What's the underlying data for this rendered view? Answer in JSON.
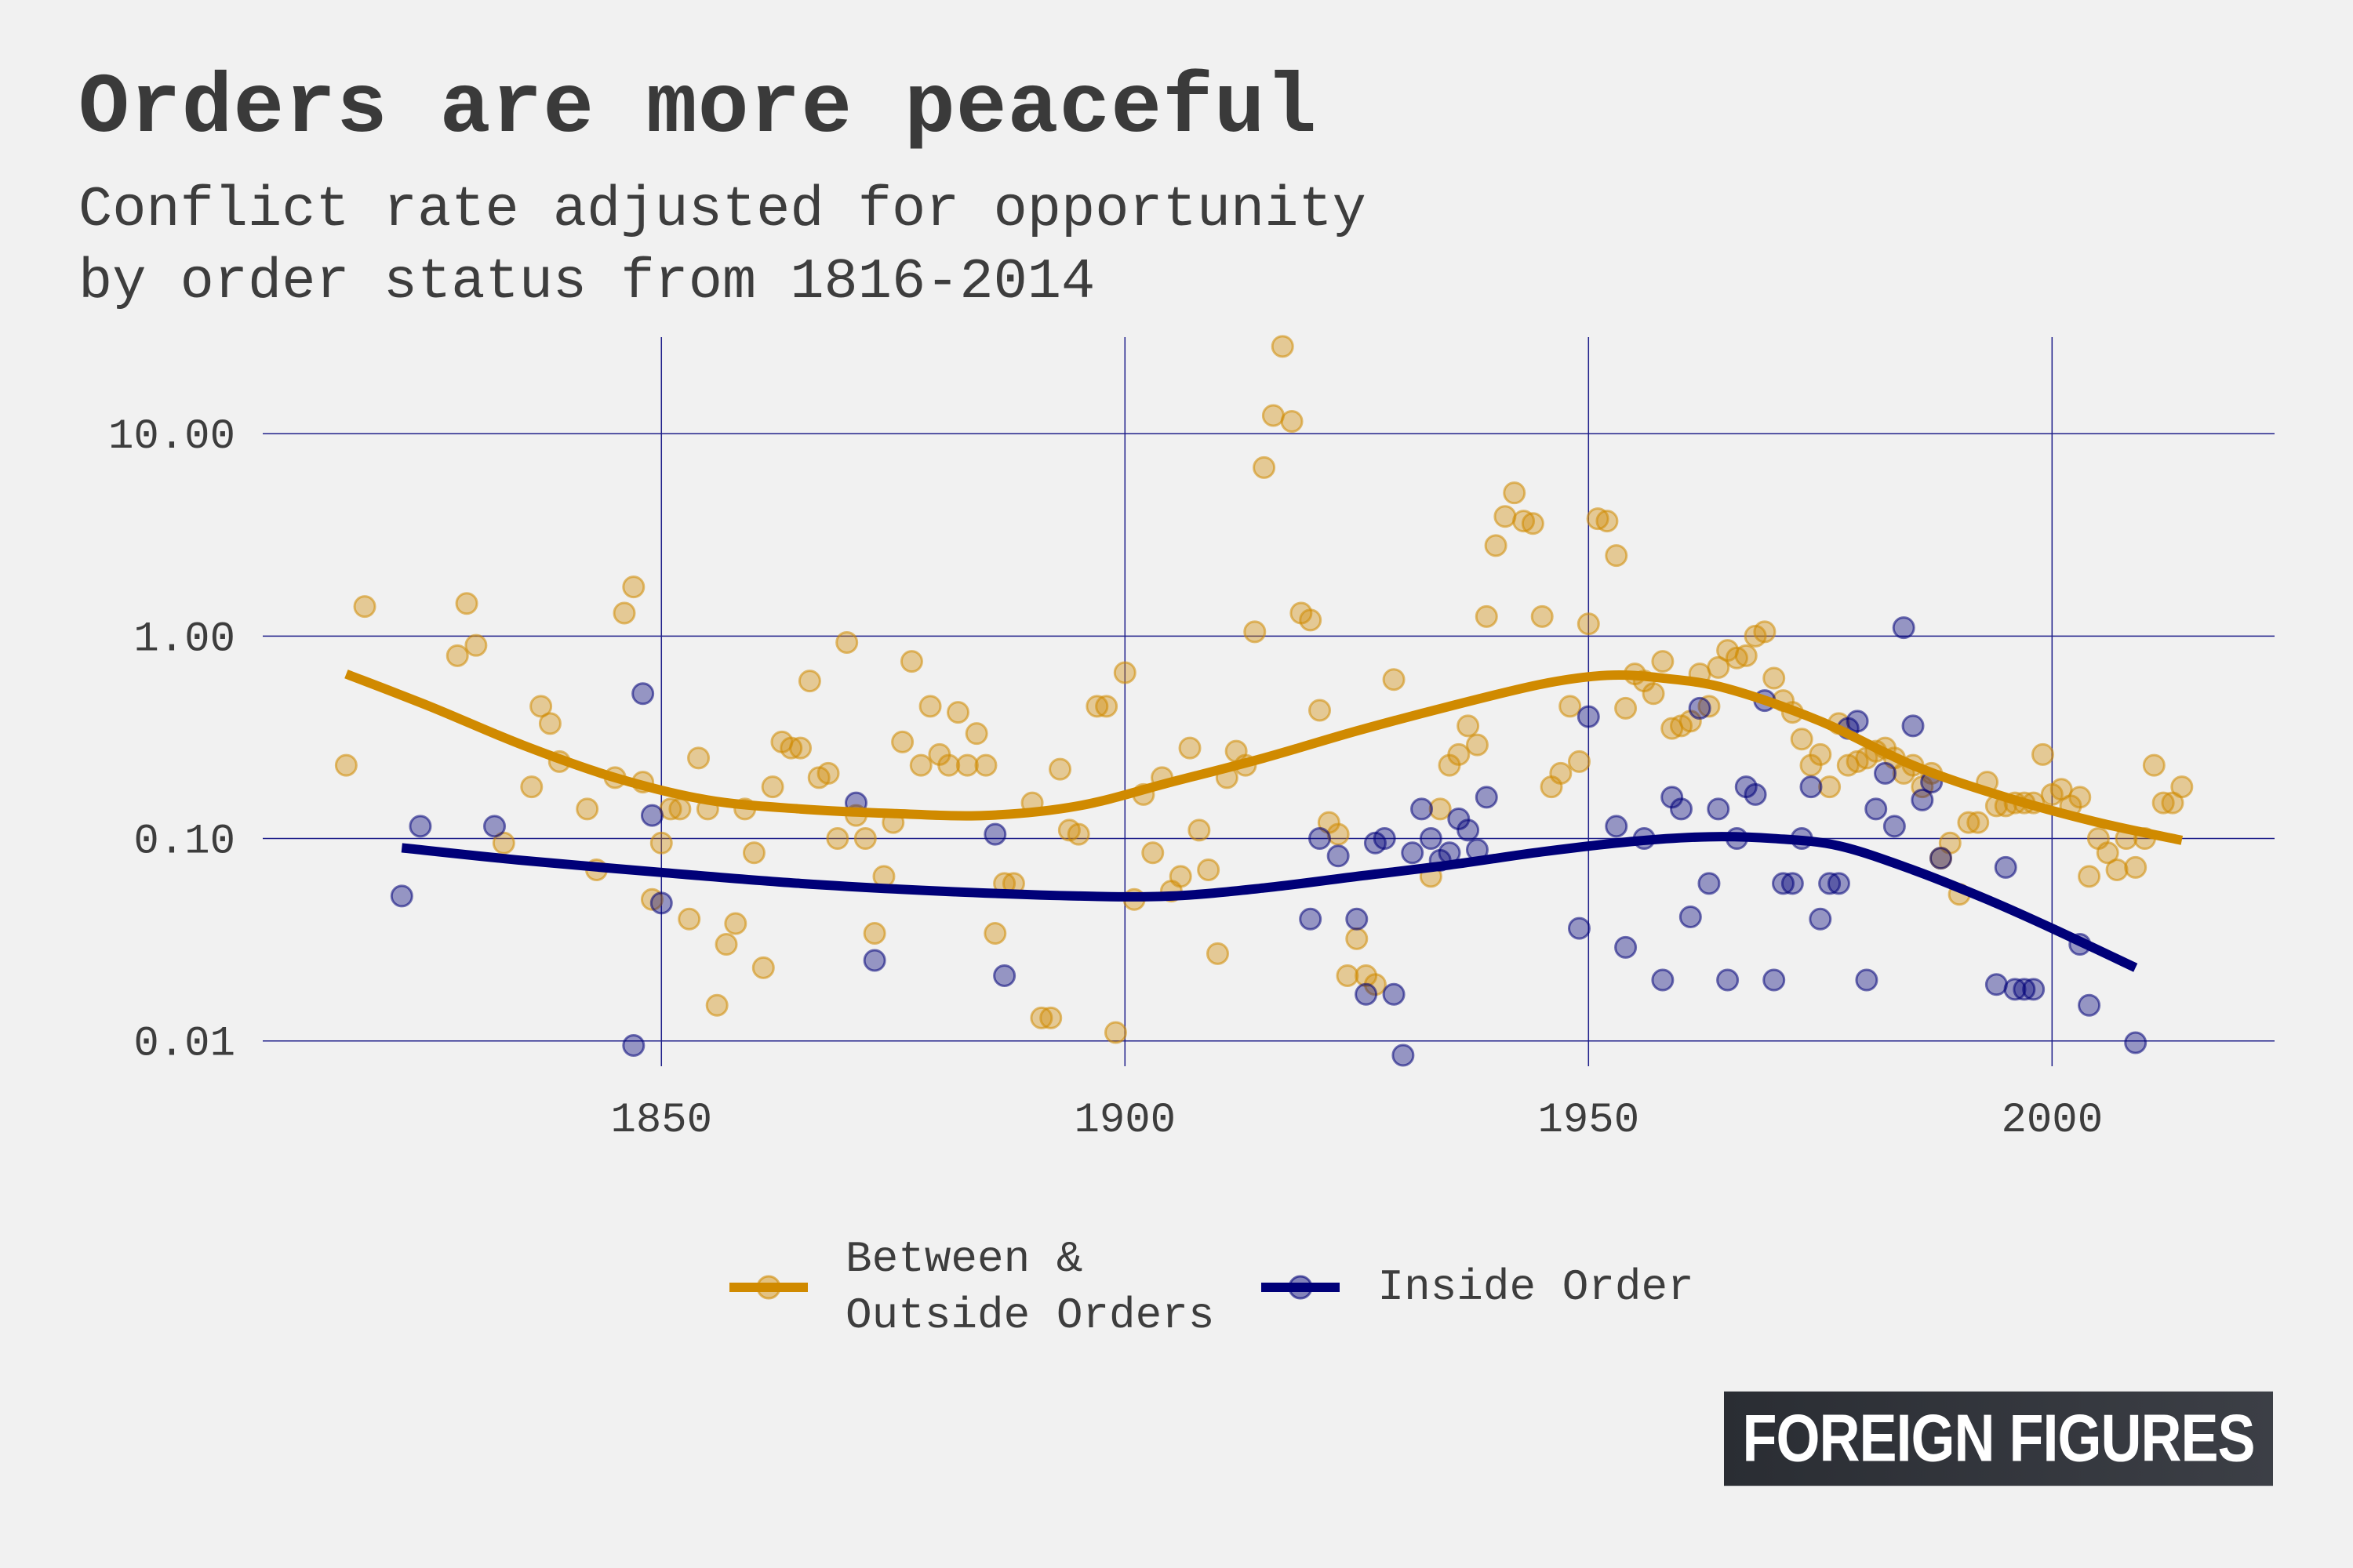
{
  "header": {
    "title": "Orders are more peaceful",
    "subtitle_line1": "Conflict rate adjusted for opportunity",
    "subtitle_line2": "by order status from 1816-2014"
  },
  "brand": {
    "logo_text": "FOREIGN FIGURES"
  },
  "colors": {
    "background": "#f1f1f1",
    "between_outside": "#d08a00",
    "inside": "#000078",
    "grid": "#1f1f8a"
  },
  "chart_data": {
    "type": "scatter",
    "xlim": [
      1807,
      2024
    ],
    "ylim": [
      0.0075,
      30
    ],
    "y_scale": "log",
    "grid": true,
    "legend_position": "bottom",
    "x_ticks": [
      {
        "value": 1850,
        "label": "1850"
      },
      {
        "value": 1900,
        "label": "1900"
      },
      {
        "value": 1950,
        "label": "1950"
      },
      {
        "value": 2000,
        "label": "2000"
      }
    ],
    "y_ticks": [
      {
        "value": 0.01,
        "label": "0.01"
      },
      {
        "value": 0.1,
        "label": "0.10"
      },
      {
        "value": 1,
        "label": "1.00"
      },
      {
        "value": 10,
        "label": "10.00"
      }
    ],
    "series": [
      {
        "name": "Between &\nOutside Orders",
        "color": "#d08a00",
        "points": [
          [
            1816,
            0.23
          ],
          [
            1818,
            1.4
          ],
          [
            1828,
            0.8
          ],
          [
            1829,
            1.45
          ],
          [
            1830,
            0.9
          ],
          [
            1833,
            0.095
          ],
          [
            1836,
            0.18
          ],
          [
            1837,
            0.45
          ],
          [
            1838,
            0.37
          ],
          [
            1839,
            0.24
          ],
          [
            1842,
            0.14
          ],
          [
            1843,
            0.07
          ],
          [
            1845,
            0.2
          ],
          [
            1846,
            1.3
          ],
          [
            1847,
            1.75
          ],
          [
            1848,
            0.19
          ],
          [
            1849,
            0.05
          ],
          [
            1850,
            0.095
          ],
          [
            1851,
            0.14
          ],
          [
            1852,
            0.14
          ],
          [
            1853,
            0.04
          ],
          [
            1854,
            0.25
          ],
          [
            1855,
            0.14
          ],
          [
            1856,
            0.015
          ],
          [
            1857,
            0.03
          ],
          [
            1858,
            0.038
          ],
          [
            1859,
            0.14
          ],
          [
            1860,
            0.085
          ],
          [
            1861,
            0.023
          ],
          [
            1862,
            0.18
          ],
          [
            1863,
            0.3
          ],
          [
            1864,
            0.28
          ],
          [
            1865,
            0.28
          ],
          [
            1866,
            0.6
          ],
          [
            1867,
            0.2
          ],
          [
            1868,
            0.21
          ],
          [
            1869,
            0.1
          ],
          [
            1870,
            0.93
          ],
          [
            1871,
            0.13
          ],
          [
            1872,
            0.1
          ],
          [
            1873,
            0.034
          ],
          [
            1874,
            0.065
          ],
          [
            1875,
            0.12
          ],
          [
            1876,
            0.3
          ],
          [
            1877,
            0.75
          ],
          [
            1878,
            0.23
          ],
          [
            1879,
            0.45
          ],
          [
            1880,
            0.26
          ],
          [
            1881,
            0.23
          ],
          [
            1882,
            0.42
          ],
          [
            1883,
            0.23
          ],
          [
            1884,
            0.33
          ],
          [
            1885,
            0.23
          ],
          [
            1886,
            0.034
          ],
          [
            1887,
            0.06
          ],
          [
            1888,
            0.06
          ],
          [
            1890,
            0.15
          ],
          [
            1891,
            0.013
          ],
          [
            1892,
            0.013
          ],
          [
            1893,
            0.22
          ],
          [
            1894,
            0.11
          ],
          [
            1895,
            0.105
          ],
          [
            1897,
            0.45
          ],
          [
            1898,
            0.45
          ],
          [
            1899,
            0.011
          ],
          [
            1900,
            0.66
          ],
          [
            1901,
            0.05
          ],
          [
            1902,
            0.165
          ],
          [
            1903,
            0.085
          ],
          [
            1904,
            0.2
          ],
          [
            1905,
            0.055
          ],
          [
            1906,
            0.065
          ],
          [
            1907,
            0.28
          ],
          [
            1908,
            0.11
          ],
          [
            1909,
            0.07
          ],
          [
            1910,
            0.027
          ],
          [
            1911,
            0.2
          ],
          [
            1912,
            0.27
          ],
          [
            1913,
            0.23
          ],
          [
            1914,
            1.05
          ],
          [
            1915,
            6.8
          ],
          [
            1916,
            12.3
          ],
          [
            1917,
            27
          ],
          [
            1918,
            11.5
          ],
          [
            1919,
            1.3
          ],
          [
            1920,
            1.2
          ],
          [
            1921,
            0.43
          ],
          [
            1922,
            0.12
          ],
          [
            1923,
            0.105
          ],
          [
            1924,
            0.021
          ],
          [
            1925,
            0.032
          ],
          [
            1926,
            0.021
          ],
          [
            1927,
            0.019
          ],
          [
            1929,
            0.61
          ],
          [
            1933,
            0.065
          ],
          [
            1934,
            0.14
          ],
          [
            1935,
            0.23
          ],
          [
            1936,
            0.26
          ],
          [
            1937,
            0.36
          ],
          [
            1938,
            0.29
          ],
          [
            1939,
            1.25
          ],
          [
            1940,
            2.8
          ],
          [
            1941,
            3.9
          ],
          [
            1942,
            5.1
          ],
          [
            1943,
            3.7
          ],
          [
            1944,
            3.6
          ],
          [
            1945,
            1.25
          ],
          [
            1946,
            0.18
          ],
          [
            1947,
            0.21
          ],
          [
            1948,
            0.45
          ],
          [
            1949,
            0.24
          ],
          [
            1950,
            1.15
          ],
          [
            1951,
            3.8
          ],
          [
            1952,
            3.7
          ],
          [
            1953,
            2.5
          ],
          [
            1954,
            0.44
          ],
          [
            1955,
            0.65
          ],
          [
            1956,
            0.6
          ],
          [
            1957,
            0.52
          ],
          [
            1958,
            0.75
          ],
          [
            1959,
            0.35
          ],
          [
            1960,
            0.36
          ],
          [
            1961,
            0.38
          ],
          [
            1962,
            0.65
          ],
          [
            1963,
            0.45
          ],
          [
            1964,
            0.7
          ],
          [
            1965,
            0.85
          ],
          [
            1966,
            0.78
          ],
          [
            1967,
            0.8
          ],
          [
            1968,
            1.0
          ],
          [
            1969,
            1.05
          ],
          [
            1970,
            0.62
          ],
          [
            1971,
            0.48
          ],
          [
            1972,
            0.42
          ],
          [
            1973,
            0.31
          ],
          [
            1974,
            0.23
          ],
          [
            1975,
            0.26
          ],
          [
            1976,
            0.18
          ],
          [
            1977,
            0.37
          ],
          [
            1978,
            0.23
          ],
          [
            1979,
            0.24
          ],
          [
            1980,
            0.25
          ],
          [
            1981,
            0.27
          ],
          [
            1982,
            0.28
          ],
          [
            1983,
            0.25
          ],
          [
            1984,
            0.21
          ],
          [
            1985,
            0.23
          ],
          [
            1986,
            0.18
          ],
          [
            1987,
            0.21
          ],
          [
            1988,
            0.08
          ],
          [
            1989,
            0.095
          ],
          [
            1990,
            0.053
          ],
          [
            1991,
            0.12
          ],
          [
            1992,
            0.12
          ],
          [
            1993,
            0.19
          ],
          [
            1994,
            0.145
          ],
          [
            1995,
            0.145
          ],
          [
            1996,
            0.15
          ],
          [
            1997,
            0.15
          ],
          [
            1998,
            0.15
          ],
          [
            1999,
            0.26
          ],
          [
            2000,
            0.165
          ],
          [
            2001,
            0.175
          ],
          [
            2002,
            0.145
          ],
          [
            2003,
            0.16
          ],
          [
            2004,
            0.065
          ],
          [
            2005,
            0.1
          ],
          [
            2006,
            0.085
          ],
          [
            2007,
            0.07
          ],
          [
            2008,
            0.1
          ],
          [
            2009,
            0.072
          ],
          [
            2010,
            0.1
          ],
          [
            2011,
            0.23
          ],
          [
            2012,
            0.15
          ],
          [
            2013,
            0.15
          ],
          [
            2014,
            0.18
          ]
        ],
        "trend": [
          [
            1816,
            0.65
          ],
          [
            1825,
            0.45
          ],
          [
            1835,
            0.29
          ],
          [
            1845,
            0.2
          ],
          [
            1855,
            0.155
          ],
          [
            1865,
            0.14
          ],
          [
            1875,
            0.133
          ],
          [
            1885,
            0.13
          ],
          [
            1895,
            0.145
          ],
          [
            1905,
            0.19
          ],
          [
            1915,
            0.25
          ],
          [
            1925,
            0.34
          ],
          [
            1935,
            0.45
          ],
          [
            1945,
            0.58
          ],
          [
            1952,
            0.64
          ],
          [
            1958,
            0.62
          ],
          [
            1965,
            0.55
          ],
          [
            1975,
            0.38
          ],
          [
            1985,
            0.23
          ],
          [
            1995,
            0.16
          ],
          [
            2005,
            0.12
          ],
          [
            2014,
            0.098
          ]
        ]
      },
      {
        "name": "Inside Order",
        "color": "#000078",
        "points": [
          [
            1822,
            0.052
          ],
          [
            1824,
            0.115
          ],
          [
            1832,
            0.115
          ],
          [
            1847,
            0.0095
          ],
          [
            1848,
            0.52
          ],
          [
            1849,
            0.13
          ],
          [
            1850,
            0.048
          ],
          [
            1871,
            0.15
          ],
          [
            1873,
            0.025
          ],
          [
            1886,
            0.105
          ],
          [
            1887,
            0.021
          ],
          [
            1920,
            0.04
          ],
          [
            1921,
            0.1
          ],
          [
            1923,
            0.082
          ],
          [
            1925,
            0.04
          ],
          [
            1926,
            0.017
          ],
          [
            1927,
            0.095
          ],
          [
            1928,
            0.1
          ],
          [
            1929,
            0.017
          ],
          [
            1930,
            0.0085
          ],
          [
            1931,
            0.085
          ],
          [
            1932,
            0.14
          ],
          [
            1933,
            0.1
          ],
          [
            1934,
            0.078
          ],
          [
            1935,
            0.085
          ],
          [
            1936,
            0.125
          ],
          [
            1937,
            0.11
          ],
          [
            1938,
            0.088
          ],
          [
            1939,
            0.16
          ],
          [
            1949,
            0.036
          ],
          [
            1950,
            0.4
          ],
          [
            1953,
            0.115
          ],
          [
            1954,
            0.029
          ],
          [
            1956,
            0.1
          ],
          [
            1958,
            0.02
          ],
          [
            1959,
            0.16
          ],
          [
            1960,
            0.14
          ],
          [
            1961,
            0.041
          ],
          [
            1962,
            0.44
          ],
          [
            1963,
            0.06
          ],
          [
            1964,
            0.14
          ],
          [
            1965,
            0.02
          ],
          [
            1966,
            0.1
          ],
          [
            1967,
            0.18
          ],
          [
            1968,
            0.165
          ],
          [
            1969,
            0.48
          ],
          [
            1970,
            0.02
          ],
          [
            1971,
            0.06
          ],
          [
            1972,
            0.06
          ],
          [
            1973,
            0.1
          ],
          [
            1974,
            0.18
          ],
          [
            1975,
            0.04
          ],
          [
            1976,
            0.06
          ],
          [
            1977,
            0.06
          ],
          [
            1978,
            0.35
          ],
          [
            1979,
            0.38
          ],
          [
            1980,
            0.02
          ],
          [
            1981,
            0.14
          ],
          [
            1982,
            0.21
          ],
          [
            1983,
            0.115
          ],
          [
            1984,
            1.1
          ],
          [
            1985,
            0.36
          ],
          [
            1986,
            0.155
          ],
          [
            1987,
            0.19
          ],
          [
            1988,
            0.08
          ],
          [
            1994,
            0.019
          ],
          [
            1995,
            0.072
          ],
          [
            1996,
            0.018
          ],
          [
            1997,
            0.018
          ],
          [
            1998,
            0.018
          ],
          [
            2003,
            0.03
          ],
          [
            2004,
            0.015
          ],
          [
            2009,
            0.0098
          ]
        ],
        "trend": [
          [
            1822,
            0.09
          ],
          [
            1835,
            0.078
          ],
          [
            1850,
            0.068
          ],
          [
            1865,
            0.06
          ],
          [
            1880,
            0.055
          ],
          [
            1895,
            0.052
          ],
          [
            1905,
            0.052
          ],
          [
            1915,
            0.057
          ],
          [
            1925,
            0.065
          ],
          [
            1935,
            0.074
          ],
          [
            1945,
            0.086
          ],
          [
            1955,
            0.097
          ],
          [
            1963,
            0.102
          ],
          [
            1970,
            0.1
          ],
          [
            1977,
            0.092
          ],
          [
            1985,
            0.07
          ],
          [
            1993,
            0.05
          ],
          [
            2000,
            0.036
          ],
          [
            2009,
            0.023
          ]
        ]
      }
    ]
  }
}
